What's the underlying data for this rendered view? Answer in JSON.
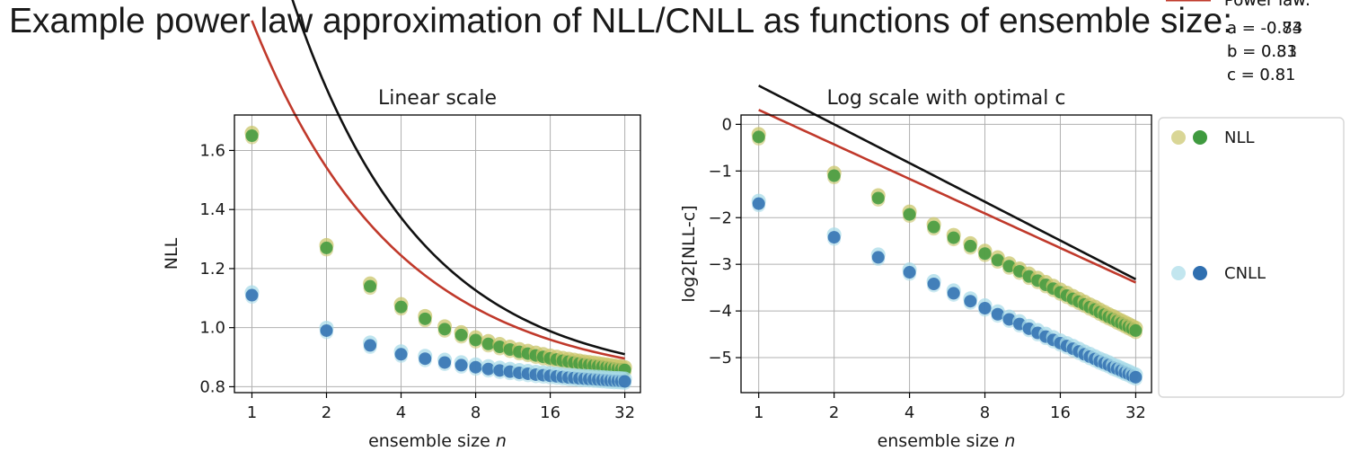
{
  "page": {
    "title": "Example power law approximation of NLL/CNLL as functions of ensemble size:"
  },
  "colors": {
    "nll_light": "#c9c56a",
    "nll_dark": "#3f9a3f",
    "cnll_light": "#a8dbe8",
    "cnll_dark": "#2f6fb0",
    "nll_fit": "#111111",
    "cnll_fit": "#c0392b",
    "grid": "#b0b0b0",
    "frame": "#000000"
  },
  "legend": {
    "placement": "right of log-scale panel",
    "items": [
      {
        "label": "NLL",
        "kind": "markers",
        "colors": [
          "#c9c56a",
          "#3f9a3f"
        ]
      },
      {
        "label": "Power law:",
        "kind": "line",
        "color": "#111111",
        "params": [
          "a = -0.83",
          "b = 0.83",
          "c = 0.81"
        ]
      },
      {
        "label": "CNLL",
        "kind": "markers",
        "colors": [
          "#a8dbe8",
          "#2f6fb0"
        ]
      },
      {
        "label": "Power law:",
        "kind": "line",
        "color": "#c0392b",
        "params": [
          "a = -0.74",
          "b = 0.31",
          "c = 0.8"
        ]
      }
    ]
  },
  "chart_data": [
    {
      "type": "scatter",
      "title": "Linear scale",
      "xlabel": "ensemble size",
      "xlabel_var": "n",
      "ylabel": "NLL",
      "x_scale": "log2",
      "xlim": [
        0.85,
        37
      ],
      "ylim": [
        0.78,
        1.72
      ],
      "grid": true,
      "xticks": [
        1,
        2,
        4,
        8,
        16,
        32
      ],
      "xtick_labels": [
        "1",
        "2",
        "4",
        "8",
        "16",
        "32"
      ],
      "yticks": [
        0.8,
        1.0,
        1.2,
        1.4,
        1.6
      ],
      "ytick_labels": [
        "0.8",
        "1.0",
        "1.2",
        "1.4",
        "1.6"
      ],
      "series": [
        {
          "name": "NLL",
          "x": [
            1,
            2,
            3,
            4,
            5,
            6,
            7,
            8,
            9,
            10,
            11,
            12,
            13,
            14,
            15,
            16,
            17,
            18,
            19,
            20,
            21,
            22,
            23,
            24,
            25,
            26,
            27,
            28,
            29,
            30,
            31,
            32
          ],
          "y": [
            1.65,
            1.27,
            1.14,
            1.07,
            1.03,
            0.995,
            0.975,
            0.958,
            0.945,
            0.935,
            0.926,
            0.918,
            0.912,
            0.906,
            0.901,
            0.896,
            0.892,
            0.888,
            0.885,
            0.882,
            0.879,
            0.876,
            0.874,
            0.872,
            0.87,
            0.868,
            0.866,
            0.864,
            0.862,
            0.86,
            0.859,
            0.857
          ]
        },
        {
          "name": "CNLL",
          "x": [
            1,
            2,
            3,
            4,
            5,
            6,
            7,
            8,
            9,
            10,
            11,
            12,
            13,
            14,
            15,
            16,
            17,
            18,
            19,
            20,
            21,
            22,
            23,
            24,
            25,
            26,
            27,
            28,
            29,
            30,
            31,
            32
          ],
          "y": [
            1.11,
            0.99,
            0.94,
            0.91,
            0.895,
            0.882,
            0.873,
            0.866,
            0.86,
            0.855,
            0.851,
            0.847,
            0.844,
            0.841,
            0.839,
            0.837,
            0.835,
            0.833,
            0.831,
            0.83,
            0.828,
            0.827,
            0.826,
            0.825,
            0.824,
            0.823,
            0.822,
            0.821,
            0.82,
            0.82,
            0.819,
            0.818
          ]
        }
      ],
      "fits": [
        {
          "of": "NLL",
          "a": -0.83,
          "b": 0.83,
          "c": 0.81
        },
        {
          "of": "CNLL",
          "a": -0.74,
          "b": 0.31,
          "c": 0.8
        }
      ]
    },
    {
      "type": "scatter",
      "title": "Log scale with optimal c",
      "xlabel": "ensemble size",
      "xlabel_var": "n",
      "ylabel": "log2[NLL-c]",
      "x_scale": "log2",
      "xlim": [
        0.85,
        37
      ],
      "ylim": [
        -5.75,
        0.2
      ],
      "grid": true,
      "xticks": [
        1,
        2,
        4,
        8,
        16,
        32
      ],
      "xtick_labels": [
        "1",
        "2",
        "4",
        "8",
        "16",
        "32"
      ],
      "yticks": [
        0,
        -1,
        -2,
        -3,
        -4,
        -5
      ],
      "ytick_labels": [
        "0",
        "−1",
        "−2",
        "−3",
        "−4",
        "−5"
      ],
      "series": [
        {
          "name": "NLL",
          "x": [
            1,
            2,
            3,
            4,
            5,
            6,
            7,
            8,
            9,
            10,
            11,
            12,
            13,
            14,
            15,
            16,
            17,
            18,
            19,
            20,
            21,
            22,
            23,
            24,
            25,
            26,
            27,
            28,
            29,
            30,
            31,
            32
          ],
          "y": [
            -0.27,
            -1.1,
            -1.58,
            -1.93,
            -2.2,
            -2.43,
            -2.61,
            -2.77,
            -2.91,
            -3.04,
            -3.15,
            -3.26,
            -3.35,
            -3.44,
            -3.52,
            -3.6,
            -3.67,
            -3.74,
            -3.8,
            -3.86,
            -3.92,
            -3.97,
            -4.03,
            -4.08,
            -4.13,
            -4.17,
            -4.22,
            -4.26,
            -4.3,
            -4.34,
            -4.38,
            -4.42
          ]
        },
        {
          "name": "CNLL",
          "x": [
            1,
            2,
            3,
            4,
            5,
            6,
            7,
            8,
            9,
            10,
            11,
            12,
            13,
            14,
            15,
            16,
            17,
            18,
            19,
            20,
            21,
            22,
            23,
            24,
            25,
            26,
            27,
            28,
            29,
            30,
            31,
            32
          ],
          "y": [
            -1.7,
            -2.42,
            -2.85,
            -3.17,
            -3.42,
            -3.62,
            -3.79,
            -3.94,
            -4.07,
            -4.18,
            -4.28,
            -4.38,
            -4.47,
            -4.55,
            -4.62,
            -4.69,
            -4.75,
            -4.81,
            -4.87,
            -4.93,
            -4.98,
            -5.03,
            -5.08,
            -5.12,
            -5.16,
            -5.21,
            -5.24,
            -5.28,
            -5.32,
            -5.35,
            -5.39,
            -5.42
          ]
        }
      ],
      "fits": [
        {
          "of": "NLL",
          "a": -0.83,
          "b": 0.83,
          "c": 0.81
        },
        {
          "of": "CNLL",
          "a": -0.74,
          "b": 0.31,
          "c": 0.8
        }
      ]
    }
  ]
}
